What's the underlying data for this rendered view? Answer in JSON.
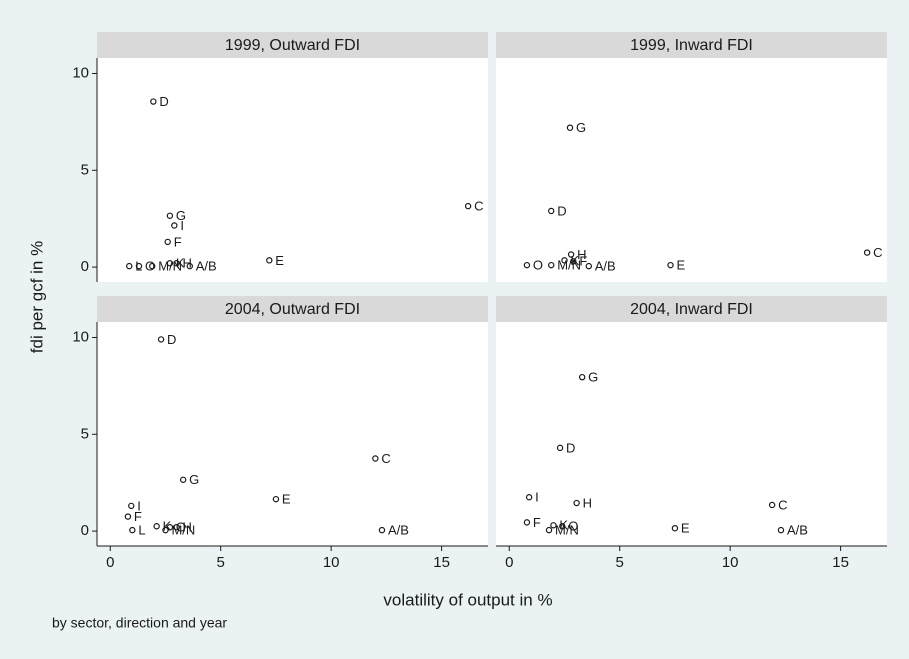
{
  "figure": {
    "ylabel": "fdi per gcf in %",
    "xlabel": "volatility of output in %",
    "note": "by sector, direction and year"
  },
  "chart_data": [
    {
      "type": "scatter",
      "title": "1999, Outward FDI",
      "xlim": [
        -0.6,
        17.1
      ],
      "ylim": [
        -0.77,
        10.8
      ],
      "yticks": [
        0,
        5,
        10
      ],
      "x": [
        1.95,
        16.2,
        2.7,
        2.9,
        2.6,
        7.2,
        0.86,
        1.3,
        1.9,
        2.7,
        3.0,
        3.6
      ],
      "values": [
        8.55,
        3.15,
        2.65,
        2.15,
        1.3,
        0.35,
        0.05,
        0.05,
        0.05,
        0.2,
        0.2,
        0.05
      ],
      "point_labels": [
        "D",
        "C",
        "G",
        "I",
        "F",
        "E",
        "L",
        "O",
        "M/N",
        "K",
        "H",
        "A/B"
      ]
    },
    {
      "type": "scatter",
      "title": "1999, Inward  FDI",
      "xlim": [
        -0.6,
        17.1
      ],
      "ylim": [
        -0.77,
        10.8
      ],
      "x": [
        2.75,
        1.9,
        16.2,
        2.8,
        7.3,
        0.8,
        1.9,
        2.5,
        2.9,
        3.6
      ],
      "values": [
        7.2,
        2.9,
        0.75,
        0.65,
        0.1,
        0.1,
        0.1,
        0.35,
        0.3,
        0.05
      ],
      "point_labels": [
        "G",
        "D",
        "C",
        "H",
        "E",
        "O",
        "M/N",
        "K",
        "F",
        "A/B"
      ]
    },
    {
      "type": "scatter",
      "title": "2004, Outward FDI",
      "xlim": [
        -0.6,
        17.1
      ],
      "ylim": [
        -0.77,
        10.8
      ],
      "xticks": [
        0,
        5,
        10,
        15
      ],
      "yticks": [
        0,
        5,
        10
      ],
      "x": [
        2.3,
        12.0,
        3.3,
        7.5,
        0.95,
        0.8,
        1.0,
        2.1,
        2.5,
        2.7,
        3.0,
        12.3
      ],
      "values": [
        9.9,
        3.75,
        2.65,
        1.65,
        1.3,
        0.75,
        0.05,
        0.25,
        0.05,
        0.2,
        0.2,
        0.05
      ],
      "point_labels": [
        "D",
        "C",
        "G",
        "E",
        "I",
        "F",
        "L",
        "K",
        "M/N",
        "O",
        "H",
        "A/B"
      ]
    },
    {
      "type": "scatter",
      "title": "2004, Inward  FDI",
      "xlim": [
        -0.6,
        17.1
      ],
      "ylim": [
        -0.77,
        10.8
      ],
      "xticks": [
        0,
        5,
        10,
        15
      ],
      "x": [
        3.3,
        2.3,
        0.9,
        3.05,
        11.9,
        0.8,
        2.0,
        2.4,
        1.8,
        7.5,
        12.3
      ],
      "values": [
        7.95,
        4.3,
        1.75,
        1.45,
        1.35,
        0.45,
        0.3,
        0.25,
        0.05,
        0.15,
        0.05
      ],
      "point_labels": [
        "G",
        "D",
        "I",
        "H",
        "C",
        "F",
        "K",
        "O",
        "M/N",
        "E",
        "A/B"
      ]
    }
  ]
}
